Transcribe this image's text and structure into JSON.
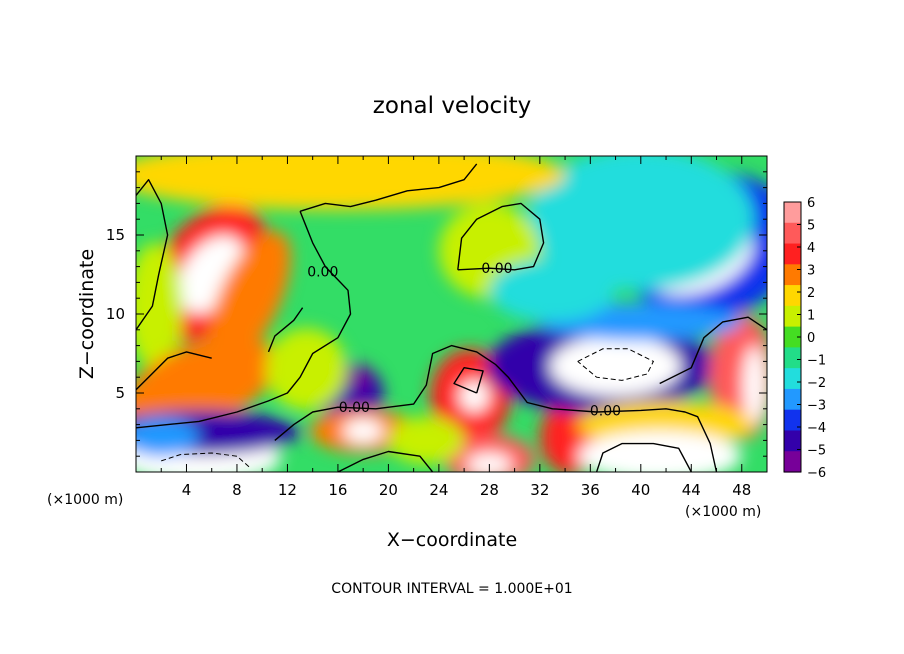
{
  "chart_data": {
    "type": "heatmap",
    "title": "zonal velocity",
    "xlabel": "X−coordinate",
    "ylabel": "Z−coordinate",
    "x_unit_left": "(×1000 m)",
    "x_unit_right": "(×1000 m)",
    "xlim": [
      0,
      50
    ],
    "ylim": [
      0,
      20
    ],
    "x_ticks": [
      4,
      8,
      12,
      16,
      20,
      24,
      28,
      32,
      36,
      40,
      44,
      48
    ],
    "y_ticks": [
      5,
      10,
      15
    ],
    "colorbar": {
      "ticks": [
        "6",
        "5",
        "4",
        "3",
        "2",
        "1",
        "0",
        "−1",
        "−2",
        "−3",
        "−4",
        "−5",
        "−6"
      ],
      "colors": [
        "#ff9c9c",
        "#ff5a5a",
        "#ff2020",
        "#ff7a00",
        "#ffd700",
        "#c8f000",
        "#44dd22",
        "#22dd88",
        "#22dddd",
        "#2299ff",
        "#1133ee",
        "#3300aa",
        "#770099"
      ],
      "min": -6,
      "max": 6
    },
    "contour_labels": [
      {
        "text": "0.00",
        "x": 14.8,
        "y": 12.7
      },
      {
        "text": "0.00",
        "x": 28.6,
        "y": 12.9
      },
      {
        "text": "0.00",
        "x": 17.3,
        "y": 4.1
      },
      {
        "text": "0.00",
        "x": 37.2,
        "y": 3.9
      }
    ],
    "blobs": [
      {
        "x": 5.8,
        "y": 12.6,
        "rx": 6.0,
        "ry": 3.2,
        "v": 4.5,
        "rot": -55
      },
      {
        "x": 6.0,
        "y": 12.5,
        "rx": 3.4,
        "ry": 1.8,
        "v": 6.5,
        "rot": -55
      },
      {
        "x": 9.0,
        "y": 11.0,
        "rx": 2.4,
        "ry": 4.6,
        "v": 3.0,
        "rot": 25
      },
      {
        "x": 1.5,
        "y": 10.5,
        "rx": 2.2,
        "ry": 4.0,
        "v": 1.5,
        "rot": 0
      },
      {
        "x": 4.2,
        "y": 5.7,
        "rx": 4.6,
        "ry": 1.8,
        "v": 6.5,
        "rot": -22
      },
      {
        "x": 5.0,
        "y": 5.5,
        "rx": 6.5,
        "ry": 2.6,
        "v": 3.5,
        "rot": -22
      },
      {
        "x": 17.0,
        "y": 4.9,
        "rx": 2.6,
        "ry": 2.0,
        "v": -4.6,
        "rot": 0
      },
      {
        "x": 17.5,
        "y": 6.0,
        "rx": 1.0,
        "ry": 0.8,
        "v": -6.0,
        "rot": 0
      },
      {
        "x": 18.0,
        "y": 2.6,
        "rx": 4.2,
        "ry": 1.4,
        "v": 3.5,
        "rot": 0
      },
      {
        "x": 18.0,
        "y": 2.6,
        "rx": 1.6,
        "ry": 0.8,
        "v": 6.5,
        "rot": 0
      },
      {
        "x": 13.5,
        "y": 6.5,
        "rx": 3.2,
        "ry": 2.6,
        "v": 1.3,
        "rot": 0
      },
      {
        "x": 26.5,
        "y": 4.8,
        "rx": 3.2,
        "ry": 3.0,
        "v": 4.2,
        "rot": 0
      },
      {
        "x": 26.8,
        "y": 4.8,
        "rx": 1.2,
        "ry": 1.0,
        "v": 6.5,
        "rot": 0
      },
      {
        "x": 28.0,
        "y": 0.8,
        "rx": 3.6,
        "ry": 1.6,
        "v": 5.0,
        "rot": 0
      },
      {
        "x": 28.0,
        "y": 0.5,
        "rx": 1.8,
        "ry": 0.7,
        "v": 6.5,
        "rot": 0
      },
      {
        "x": 34.5,
        "y": 2.2,
        "rx": 2.5,
        "ry": 2.4,
        "v": 4.5,
        "rot": 0
      },
      {
        "x": 36.8,
        "y": 6.7,
        "rx": 9.0,
        "ry": 3.0,
        "v": -4.8,
        "rot": 0
      },
      {
        "x": 38.0,
        "y": 6.7,
        "rx": 5.2,
        "ry": 1.9,
        "v": -6.8,
        "rot": 0
      },
      {
        "x": 45.5,
        "y": 14.3,
        "rx": 7.0,
        "ry": 4.6,
        "v": -4.2,
        "rot": -15
      },
      {
        "x": 44.5,
        "y": 13.6,
        "rx": 4.6,
        "ry": 2.2,
        "v": -6.8,
        "rot": -20
      },
      {
        "x": 40.0,
        "y": 16.0,
        "rx": 9.0,
        "ry": 4.5,
        "v": -2.0,
        "rot": 0
      },
      {
        "x": 28.0,
        "y": 14.0,
        "rx": 4.0,
        "ry": 3.0,
        "v": 1.0,
        "rot": 0
      },
      {
        "x": 16.0,
        "y": 18.8,
        "rx": 18.0,
        "ry": 2.2,
        "v": 2.4,
        "rot": 0
      },
      {
        "x": 48.0,
        "y": 6.0,
        "rx": 2.6,
        "ry": 4.0,
        "v": 5.5,
        "rot": 0
      },
      {
        "x": 49.0,
        "y": 5.5,
        "rx": 0.9,
        "ry": 2.5,
        "v": 6.8,
        "rot": 0
      },
      {
        "x": 42.0,
        "y": 3.0,
        "rx": 7.0,
        "ry": 1.5,
        "v": 2.0,
        "rot": 0
      },
      {
        "x": 41.5,
        "y": 1.0,
        "rx": 6.5,
        "ry": 1.6,
        "v": 6.5,
        "rot": 0
      },
      {
        "x": 5.0,
        "y": 0.9,
        "rx": 6.5,
        "ry": 1.6,
        "v": 6.8,
        "rot": 0
      },
      {
        "x": 5.0,
        "y": 2.5,
        "rx": 8.0,
        "ry": 1.4,
        "v": -4.8,
        "rot": 0
      },
      {
        "x": 2.0,
        "y": 2.2,
        "rx": 3.0,
        "ry": 1.2,
        "v": -2.5,
        "rot": 0
      },
      {
        "x": 23.0,
        "y": 2.0,
        "rx": 3.0,
        "ry": 1.5,
        "v": 0.8,
        "rot": 0
      },
      {
        "x": 40.0,
        "y": 9.5,
        "rx": 8.0,
        "ry": 1.2,
        "v": -3.0,
        "rot": 0
      },
      {
        "x": 33.0,
        "y": 11.5,
        "rx": 5.0,
        "ry": 2.0,
        "v": -1.5,
        "rot": 0
      }
    ],
    "contours": [
      [
        [
          0.0,
          17.5
        ],
        [
          1.0,
          18.5
        ],
        [
          2.0,
          17.0
        ],
        [
          2.5,
          15.0
        ],
        [
          1.8,
          12.5
        ],
        [
          1.3,
          10.5
        ],
        [
          0.0,
          9.0
        ]
      ],
      [
        [
          13.0,
          16.5
        ],
        [
          15.0,
          17.0
        ],
        [
          17.0,
          16.8
        ],
        [
          19.0,
          17.2
        ],
        [
          21.5,
          17.8
        ],
        [
          24.0,
          18.0
        ],
        [
          26.0,
          18.5
        ],
        [
          27.0,
          19.5
        ]
      ],
      [
        [
          13.0,
          16.5
        ],
        [
          14.0,
          14.5
        ],
        [
          15.0,
          13.0
        ],
        [
          16.8,
          11.5
        ],
        [
          17.0,
          10.0
        ],
        [
          16.0,
          8.5
        ],
        [
          14.0,
          7.5
        ],
        [
          13.0,
          6.0
        ],
        [
          12.0,
          5.0
        ],
        [
          10.5,
          4.5
        ],
        [
          8.0,
          3.8
        ],
        [
          5.0,
          3.2
        ],
        [
          2.5,
          3.0
        ],
        [
          0.0,
          2.8
        ]
      ],
      [
        [
          25.5,
          12.8
        ],
        [
          25.8,
          14.8
        ],
        [
          27.0,
          16.0
        ],
        [
          29.0,
          16.8
        ],
        [
          30.5,
          17.0
        ],
        [
          32.0,
          16.0
        ],
        [
          32.3,
          14.5
        ],
        [
          31.5,
          13.0
        ],
        [
          30.0,
          12.8
        ],
        [
          28.0,
          12.9
        ],
        [
          25.5,
          12.8
        ]
      ],
      [
        [
          11.0,
          2.0
        ],
        [
          12.5,
          3.0
        ],
        [
          14.0,
          3.8
        ],
        [
          16.0,
          4.1
        ],
        [
          19.0,
          4.0
        ],
        [
          22.0,
          4.3
        ],
        [
          23.0,
          5.5
        ],
        [
          23.5,
          7.5
        ],
        [
          25.0,
          8.0
        ],
        [
          27.0,
          7.6
        ],
        [
          28.5,
          6.8
        ],
        [
          29.5,
          6.0
        ],
        [
          31.0,
          4.4
        ],
        [
          33.0,
          4.0
        ],
        [
          36.5,
          3.8
        ],
        [
          40.0,
          3.9
        ],
        [
          42.0,
          4.0
        ],
        [
          43.5,
          3.8
        ],
        [
          44.5,
          3.5
        ],
        [
          45.5,
          1.8
        ],
        [
          46.0,
          0.0
        ]
      ],
      [
        [
          41.5,
          5.6
        ],
        [
          44.0,
          6.6
        ],
        [
          45.0,
          8.5
        ],
        [
          46.5,
          9.5
        ],
        [
          48.5,
          9.8
        ],
        [
          50.0,
          9.0
        ]
      ],
      [
        [
          36.5,
          0.0
        ],
        [
          37.0,
          1.2
        ],
        [
          38.5,
          1.8
        ],
        [
          41.0,
          1.8
        ],
        [
          43.0,
          1.5
        ],
        [
          44.0,
          0.0
        ]
      ],
      [
        [
          0.0,
          5.2
        ],
        [
          1.0,
          6.0
        ],
        [
          2.5,
          7.2
        ],
        [
          4.0,
          7.6
        ],
        [
          6.0,
          7.2
        ]
      ],
      [
        [
          16.0,
          0.0
        ],
        [
          18.0,
          0.8
        ],
        [
          20.0,
          1.3
        ],
        [
          22.5,
          1.0
        ],
        [
          23.5,
          0.0
        ]
      ],
      [
        [
          27.0,
          5.0
        ],
        [
          27.5,
          6.4
        ],
        [
          26.0,
          6.6
        ],
        [
          25.2,
          5.6
        ],
        [
          27.0,
          5.0
        ]
      ],
      [
        [
          10.5,
          7.6
        ],
        [
          11.0,
          8.6
        ],
        [
          12.5,
          9.6
        ],
        [
          13.2,
          10.4
        ]
      ]
    ],
    "dashed_contours": [
      [
        [
          35.0,
          7.0
        ],
        [
          37.0,
          7.8
        ],
        [
          39.0,
          7.8
        ],
        [
          41.0,
          7.0
        ],
        [
          40.5,
          6.2
        ],
        [
          38.5,
          5.8
        ],
        [
          36.5,
          6.0
        ],
        [
          35.0,
          7.0
        ]
      ],
      [
        [
          2.0,
          0.7
        ],
        [
          3.5,
          1.1
        ],
        [
          6.0,
          1.2
        ],
        [
          8.0,
          1.0
        ],
        [
          9.0,
          0.3
        ]
      ]
    ],
    "footer": "CONTOUR INTERVAL = 1.000E+01"
  }
}
